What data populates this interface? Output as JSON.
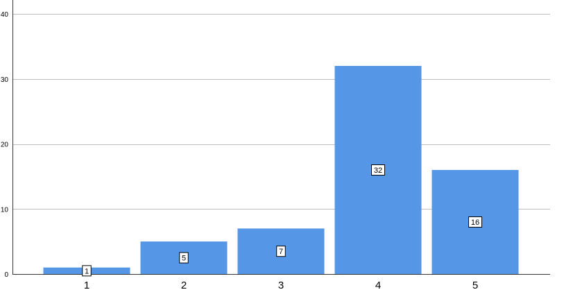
{
  "chart_data": {
    "type": "bar",
    "categories": [
      "1",
      "2",
      "3",
      "4",
      "5"
    ],
    "values": [
      1,
      5,
      7,
      32,
      16
    ],
    "data_labels": [
      "1",
      "5",
      "7",
      "32",
      "16"
    ],
    "yticks": [
      "0",
      "10",
      "20",
      "30",
      "40"
    ],
    "ytick_values": [
      0,
      10,
      20,
      30,
      40
    ],
    "ylim": [
      0,
      40
    ],
    "grid": true,
    "title": "",
    "xlabel": "",
    "ylabel": "",
    "colors": {
      "bar": "#5596e6",
      "grid": "#bdbdbd",
      "axis": "#333333",
      "label_box_fill": "#ffffff",
      "label_box_stroke": "#000000"
    }
  }
}
